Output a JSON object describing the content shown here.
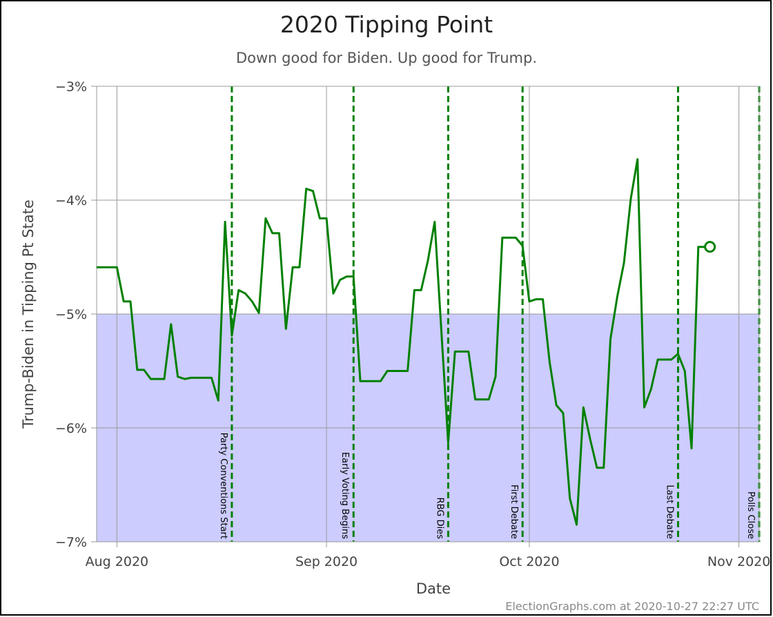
{
  "chart_data": {
    "type": "line",
    "title": "2020 Tipping Point",
    "subtitle": "Down good for Biden. Up good for Trump.",
    "x_label": "Date",
    "y_label": "Trump-Biden in Tipping Pt State",
    "footer": "ElectionGraphs.com at 2020-10-27 22:27 UTC",
    "xlim": [
      "2020-07-29",
      "2020-11-04"
    ],
    "xticks": [
      {
        "value": "2020-08-01",
        "label": "Aug 2020"
      },
      {
        "value": "2020-09-01",
        "label": "Sep 2020"
      },
      {
        "value": "2020-10-01",
        "label": "Oct 2020"
      },
      {
        "value": "2020-11-01",
        "label": "Nov 2020"
      }
    ],
    "ylim": [
      -7,
      -3
    ],
    "yticks": [
      {
        "value": -7,
        "label": "−7%"
      },
      {
        "value": -6,
        "label": "−6%"
      },
      {
        "value": -5,
        "label": "−5%"
      },
      {
        "value": -4,
        "label": "−4%"
      },
      {
        "value": -3,
        "label": "−3%"
      }
    ],
    "grid": true,
    "shaded_range": [
      -7,
      -5
    ],
    "shade_color": "#ccccff",
    "end_marker": "open-circle",
    "events": [
      {
        "x": "2020-08-18",
        "label": "Party Conventions Start"
      },
      {
        "x": "2020-09-05",
        "label": "Early Voting Begins"
      },
      {
        "x": "2020-09-19",
        "label": "RBG Dies"
      },
      {
        "x": "2020-09-30",
        "label": "First Debate"
      },
      {
        "x": "2020-10-23",
        "label": "Last Debate"
      },
      {
        "x": "2020-11-04",
        "label": "Polls Close"
      }
    ],
    "event_color": "#008000",
    "x": [
      "2020-07-29",
      "2020-07-30",
      "2020-07-31",
      "2020-08-01",
      "2020-08-02",
      "2020-08-03",
      "2020-08-04",
      "2020-08-05",
      "2020-08-06",
      "2020-08-07",
      "2020-08-08",
      "2020-08-09",
      "2020-08-10",
      "2020-08-11",
      "2020-08-12",
      "2020-08-13",
      "2020-08-14",
      "2020-08-15",
      "2020-08-16",
      "2020-08-17",
      "2020-08-18",
      "2020-08-19",
      "2020-08-20",
      "2020-08-21",
      "2020-08-22",
      "2020-08-23",
      "2020-08-24",
      "2020-08-25",
      "2020-08-26",
      "2020-08-27",
      "2020-08-28",
      "2020-08-29",
      "2020-08-30",
      "2020-08-31",
      "2020-09-01",
      "2020-09-02",
      "2020-09-03",
      "2020-09-04",
      "2020-09-05",
      "2020-09-06",
      "2020-09-07",
      "2020-09-08",
      "2020-09-09",
      "2020-09-10",
      "2020-09-11",
      "2020-09-12",
      "2020-09-13",
      "2020-09-14",
      "2020-09-15",
      "2020-09-16",
      "2020-09-17",
      "2020-09-18",
      "2020-09-19",
      "2020-09-20",
      "2020-09-21",
      "2020-09-22",
      "2020-09-23",
      "2020-09-24",
      "2020-09-25",
      "2020-09-26",
      "2020-09-27",
      "2020-09-28",
      "2020-09-29",
      "2020-09-30",
      "2020-10-01",
      "2020-10-02",
      "2020-10-03",
      "2020-10-04",
      "2020-10-05",
      "2020-10-06",
      "2020-10-07",
      "2020-10-08",
      "2020-10-09",
      "2020-10-10",
      "2020-10-11",
      "2020-10-12",
      "2020-10-13",
      "2020-10-14",
      "2020-10-15",
      "2020-10-16",
      "2020-10-17",
      "2020-10-18",
      "2020-10-19",
      "2020-10-20",
      "2020-10-21",
      "2020-10-22",
      "2020-10-23",
      "2020-10-24",
      "2020-10-25",
      "2020-10-26",
      "2020-10-27"
    ],
    "series": [
      {
        "name": "Tipping Point",
        "color": "#008000",
        "values": [
          -4.59,
          -4.59,
          -4.59,
          -4.59,
          -4.89,
          -4.89,
          -5.49,
          -5.49,
          -5.57,
          -5.57,
          -5.57,
          -5.09,
          -5.55,
          -5.57,
          -5.56,
          -5.56,
          -5.56,
          -5.56,
          -5.76,
          -4.19,
          -5.19,
          -4.79,
          -4.82,
          -4.89,
          -4.99,
          -4.16,
          -4.29,
          -4.29,
          -5.13,
          -4.59,
          -4.59,
          -3.9,
          -3.92,
          -4.16,
          -4.16,
          -4.82,
          -4.7,
          -4.67,
          -4.67,
          -5.59,
          -5.59,
          -5.59,
          -5.59,
          -5.5,
          -5.5,
          -5.5,
          -5.5,
          -4.79,
          -4.79,
          -4.53,
          -4.19,
          -5.16,
          -6.13,
          -5.33,
          -5.33,
          -5.33,
          -5.75,
          -5.75,
          -5.75,
          -5.55,
          -4.33,
          -4.33,
          -4.33,
          -4.4,
          -4.89,
          -4.87,
          -4.87,
          -5.42,
          -5.8,
          -5.87,
          -6.62,
          -6.85,
          -5.82,
          -6.1,
          -6.35,
          -6.35,
          -5.22,
          -4.85,
          -4.55,
          -3.99,
          -3.64,
          -5.82,
          -5.66,
          -5.4,
          -5.4,
          -5.4,
          -5.35,
          -5.5,
          -6.18,
          -4.41,
          -4.41
        ]
      }
    ]
  }
}
